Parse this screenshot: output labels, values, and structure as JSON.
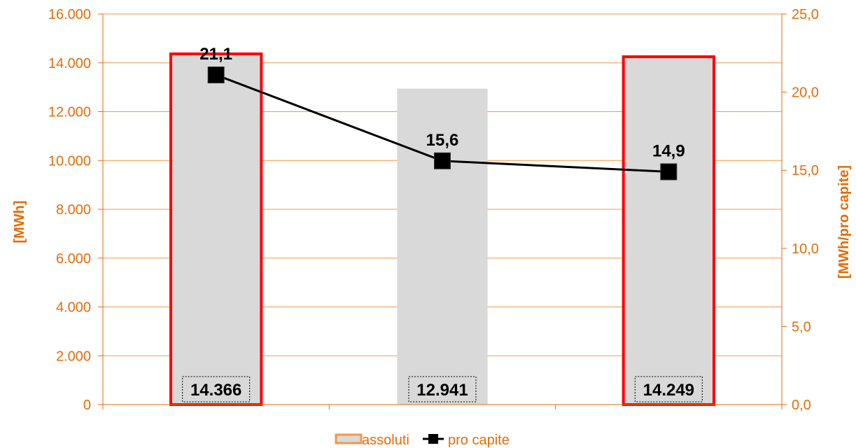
{
  "chart_data": {
    "type": "bar",
    "categories": [
      "",
      "",
      ""
    ],
    "series": [
      {
        "name": "assoluti",
        "kind": "bar",
        "axis": "left",
        "values": [
          14366,
          12941,
          14249
        ],
        "labels": [
          "14.366",
          "12.941",
          "14.249"
        ],
        "highlighted": [
          true,
          false,
          true
        ]
      },
      {
        "name": "pro capite",
        "kind": "line",
        "axis": "right",
        "values": [
          21.1,
          15.6,
          14.9
        ],
        "labels": [
          "21,1",
          "15,6",
          "14,9"
        ]
      }
    ],
    "ylabel": "[MWh]",
    "y2label": "[MWh/pro capite]",
    "ylim": [
      0,
      16000
    ],
    "y2lim": [
      0,
      25
    ],
    "yticks": [
      "0",
      "2.000",
      "4.000",
      "6.000",
      "8.000",
      "10.000",
      "12.000",
      "14.000",
      "16.000"
    ],
    "y2ticks": [
      "0,0",
      "5,0",
      "10,0",
      "15,0",
      "20,0",
      "25,0"
    ],
    "grid": true,
    "legend_position": "bottom",
    "colors": {
      "axis": "#E46C0A",
      "grid": "#F79646",
      "bar_fill": "#D9D9D9",
      "bar_highlight_border": "#FF0000",
      "line": "#000000",
      "marker": "#000000"
    }
  }
}
